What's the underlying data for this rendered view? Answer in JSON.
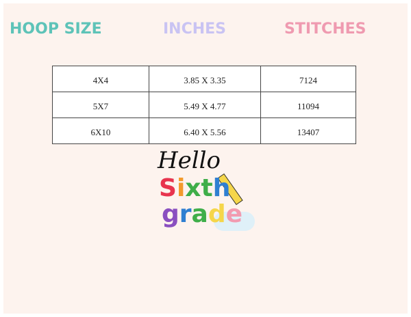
{
  "headers": [
    "HOOP SIZE",
    "INCHES",
    "STITCHES"
  ],
  "header_colors": [
    "#5ec3b8",
    "#c9c3f3",
    "#ef9ab0"
  ],
  "rows": [
    [
      "4X4",
      "3.85 X 3.35",
      "7124"
    ],
    [
      "5X7",
      "5.49 X 4.77",
      "11094"
    ],
    [
      "6X10",
      "6.40 X 5.56",
      "13407"
    ]
  ],
  "design": {
    "line1": "Hello",
    "line2": "Sixth",
    "line3": "grade"
  }
}
